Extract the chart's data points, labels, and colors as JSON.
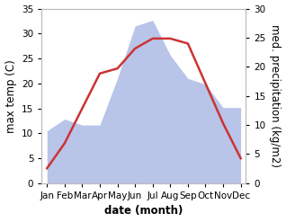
{
  "months": [
    "Jan",
    "Feb",
    "Mar",
    "Apr",
    "May",
    "Jun",
    "Jul",
    "Aug",
    "Sep",
    "Oct",
    "Nov",
    "Dec"
  ],
  "temperature": [
    3,
    8,
    15,
    22,
    23,
    27,
    29,
    29,
    28,
    20,
    12,
    5
  ],
  "precipitation_mm": [
    9,
    11,
    10,
    10,
    18,
    27,
    28,
    22,
    18,
    17,
    13,
    13
  ],
  "temp_color": "#cc3333",
  "precip_color": "#b8c4e8",
  "left_ylim": [
    0,
    35
  ],
  "right_ylim": [
    0,
    30
  ],
  "left_yticks": [
    0,
    5,
    10,
    15,
    20,
    25,
    30,
    35
  ],
  "right_yticks": [
    0,
    5,
    10,
    15,
    20,
    25,
    30
  ],
  "ylabel_left": "max temp (C)",
  "ylabel_right": "med. precipitation (kg/m2)",
  "xlabel": "date (month)",
  "bg_color": "#ffffff",
  "spine_color": "#bbbbbb",
  "tick_fontsize": 7.5,
  "label_fontsize": 8.5,
  "line_width": 1.8
}
